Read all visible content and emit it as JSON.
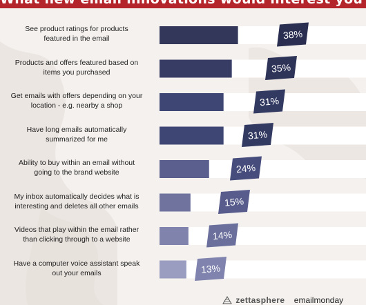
{
  "header": {
    "title": "What new email innovations would interest you ?"
  },
  "chart_data": {
    "type": "bar",
    "orientation": "horizontal",
    "title": "What new email innovations would interest you ?",
    "xlabel": "",
    "ylabel": "",
    "xlim": [
      0,
      100
    ],
    "categories": [
      "See product ratings for products featured in the email",
      "Products and offers featured based on items you purchased",
      "Get emails with offers depending  on your location  - e.g. nearby a shop",
      "Have long emails automatically summarized for me",
      "Ability  to buy within an email without going to the brand website",
      "My inbox automatically decides what is interesting and deletes all other emails",
      "Videos that play within the email rather than clicking through to a website",
      "Have a computer voice assistant speak out your emails"
    ],
    "label_lines": [
      [
        "See product ratings for products",
        "featured in the email"
      ],
      [
        "Products and offers featured based on",
        "items you purchased"
      ],
      [
        "Get emails with offers depending  on your",
        "location  - e.g. nearby a shop"
      ],
      [
        "Have long emails automatically",
        "summarized for me"
      ],
      [
        "Ability  to buy within an email without",
        "going to the brand website"
      ],
      [
        "My inbox automatically decides what is",
        "interesting and deletes all other emails"
      ],
      [
        "Videos that play within the email rather",
        "than clicking through to a website"
      ],
      [
        "Have a computer voice assistant speak",
        "out your emails"
      ]
    ],
    "values": [
      38,
      35,
      31,
      31,
      24,
      15,
      14,
      13
    ],
    "value_labels": [
      "38%",
      "35%",
      "31%",
      "31%",
      "24%",
      "15%",
      "14%",
      "13%"
    ],
    "bar_colors": [
      "#33385a",
      "#363c63",
      "#3e4674",
      "#3e4674",
      "#5a5f8e",
      "#6f739e",
      "#8084ac",
      "#9a9dbf"
    ],
    "badge_colors": [
      "#2a2f52",
      "#2e3358",
      "#333a62",
      "#333a62",
      "#464c7c",
      "#575c8c",
      "#6a6f9c",
      "#7f83ad"
    ],
    "legend": "none",
    "grid": false
  },
  "footer": {
    "brand_a": "zettasphere",
    "brand_b": "emailmonday"
  }
}
